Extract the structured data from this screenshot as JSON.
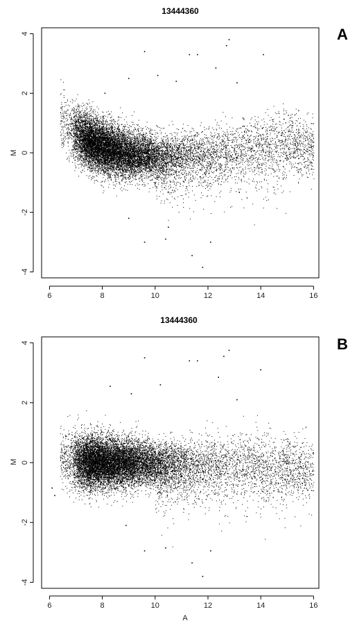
{
  "chart_data": [
    {
      "panel_label": "A",
      "type": "scatter",
      "title": "13444360",
      "xlabel": "",
      "ylabel": "M",
      "xlim": [
        5.7,
        16.2
      ],
      "ylim": [
        -4.2,
        4.2
      ],
      "xticks": [
        "6",
        "8",
        "10",
        "12",
        "14",
        "16"
      ],
      "yticks": [
        "4",
        "2",
        "0",
        "-2",
        "-4"
      ],
      "grid": false,
      "marker_color": "#000000",
      "trend": [
        [
          6.4,
          1.15
        ],
        [
          7.0,
          0.6
        ],
        [
          8.0,
          0.2
        ],
        [
          9.0,
          -0.05
        ],
        [
          10.0,
          -0.1
        ],
        [
          11.0,
          -0.05
        ],
        [
          12.0,
          0.05
        ],
        [
          13.0,
          0.15
        ],
        [
          14.0,
          0.3
        ],
        [
          15.0,
          0.35
        ],
        [
          16.0,
          0.05
        ]
      ],
      "outliers": [
        [
          9.6,
          3.4
        ],
        [
          11.3,
          3.3
        ],
        [
          11.6,
          3.3
        ],
        [
          12.7,
          3.6
        ],
        [
          12.8,
          3.8
        ],
        [
          14.1,
          3.3
        ],
        [
          10.1,
          2.6
        ],
        [
          12.3,
          2.85
        ],
        [
          8.1,
          2.0
        ],
        [
          9.0,
          2.5
        ],
        [
          13.1,
          2.35
        ],
        [
          10.8,
          2.4
        ],
        [
          9.6,
          -3.0
        ],
        [
          11.4,
          -3.45
        ],
        [
          11.8,
          -3.85
        ],
        [
          12.1,
          -3.0
        ],
        [
          10.4,
          -2.9
        ],
        [
          9.0,
          -2.2
        ],
        [
          10.5,
          -2.5
        ]
      ],
      "approx_point_count": 14000
    },
    {
      "panel_label": "B",
      "type": "scatter",
      "title": "13444360",
      "xlabel": "A",
      "ylabel": "M",
      "xlim": [
        5.7,
        16.2
      ],
      "ylim": [
        -4.2,
        4.2
      ],
      "xticks": [
        "6",
        "8",
        "10",
        "12",
        "14",
        "16"
      ],
      "yticks": [
        "4",
        "2",
        "0",
        "-2",
        "-4"
      ],
      "grid": false,
      "marker_color": "#000000",
      "trend": [
        [
          6.4,
          0.1
        ],
        [
          8.0,
          0.0
        ],
        [
          10.0,
          0.0
        ],
        [
          12.0,
          0.0
        ],
        [
          14.0,
          0.0
        ],
        [
          16.0,
          -0.3
        ]
      ],
      "outliers": [
        [
          9.6,
          3.5
        ],
        [
          11.3,
          3.4
        ],
        [
          11.6,
          3.4
        ],
        [
          12.6,
          3.55
        ],
        [
          12.8,
          3.75
        ],
        [
          14.0,
          3.1
        ],
        [
          10.2,
          2.6
        ],
        [
          12.4,
          2.85
        ],
        [
          8.3,
          2.55
        ],
        [
          9.1,
          2.3
        ],
        [
          13.1,
          2.1
        ],
        [
          6.2,
          -1.1
        ],
        [
          6.1,
          -0.85
        ],
        [
          9.6,
          -2.95
        ],
        [
          11.4,
          -3.35
        ],
        [
          11.8,
          -3.8
        ],
        [
          12.1,
          -2.95
        ],
        [
          10.4,
          -2.85
        ],
        [
          8.9,
          -2.1
        ]
      ],
      "approx_point_count": 14000
    }
  ]
}
